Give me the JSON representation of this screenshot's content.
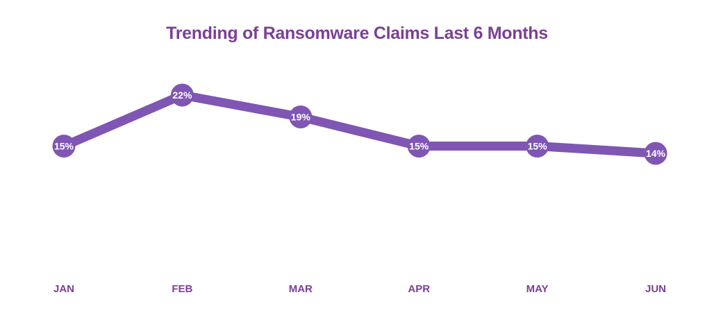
{
  "chart_data": {
    "type": "line",
    "title": "Trending of Ransomware Claims Last 6 Months",
    "categories": [
      "JAN",
      "FEB",
      "MAR",
      "APR",
      "MAY",
      "JUN"
    ],
    "series": [
      {
        "values": [
          15,
          22,
          19,
          15,
          15,
          14
        ],
        "color": "#7f56b3"
      }
    ],
    "data_labels": [
      "15%",
      "22%",
      "19%",
      "15%",
      "15%",
      "14%"
    ],
    "unit": "%",
    "ylim": [
      0,
      25
    ],
    "grid": false,
    "legend": "none",
    "title_color": "#7b3f98",
    "tick_color": "#7b3f98",
    "label_color": "#ffffff"
  }
}
